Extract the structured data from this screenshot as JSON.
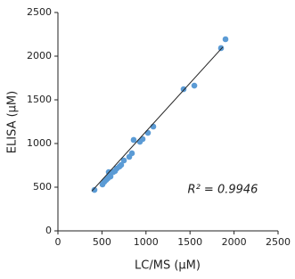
{
  "chart_data": {
    "type": "scatter",
    "x_label": "LC/MS (μM)",
    "y_label": "ELISA (μM)",
    "annotation": "R² = 0.9946",
    "color": "#5b9bd5",
    "x": [
      415,
      506,
      526,
      547,
      567,
      587,
      597,
      577,
      628,
      648,
      668,
      698,
      718,
      749,
      810,
      840,
      860,
      931,
      962,
      1022,
      1083,
      1427,
      1549,
      1852,
      1903
    ],
    "values": [
      469,
      531,
      561,
      582,
      602,
      643,
      622,
      673,
      673,
      684,
      714,
      735,
      755,
      806,
      847,
      888,
      1041,
      1020,
      1051,
      1122,
      1194,
      1622,
      1663,
      2092,
      2194
    ],
    "trendline": {
      "color": "#222222",
      "x": [
        385,
        1873
      ],
      "values": [
        455,
        2105
      ]
    },
    "xlim": [
      0,
      2500
    ],
    "xticks": [
      0,
      500,
      1000,
      1500,
      2000,
      2500
    ],
    "ylim": [
      0,
      2500
    ],
    "yticks": [
      0,
      500,
      1000,
      1500,
      2000,
      2500
    ],
    "grid": false
  }
}
